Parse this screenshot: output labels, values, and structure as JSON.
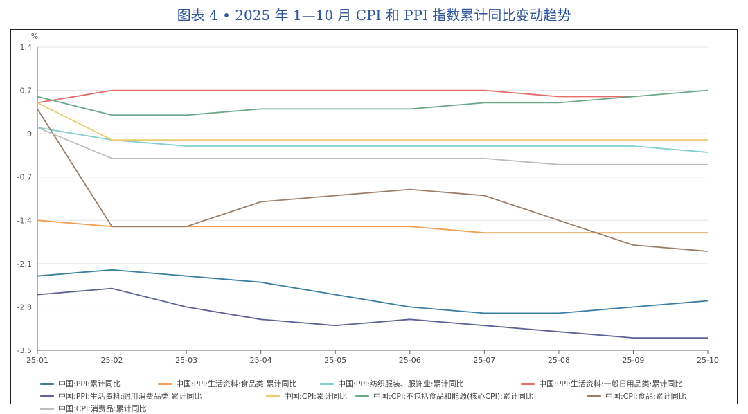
{
  "chart_data": {
    "type": "line",
    "title": "图表 4 • 2025 年 1—10 月 CPI 和 PPI 指数累计同比变动趋势",
    "ylabel": "%",
    "xlabel": "",
    "ylim": [
      -3.5,
      1.4
    ],
    "yticks": [
      1.4,
      0.7,
      0,
      -0.7,
      -1.4,
      -2.1,
      -2.8,
      -3.5
    ],
    "ytick_labels": [
      "1.4",
      "0.7",
      "0",
      "-0.7",
      "-1.4",
      "-2.1",
      "-2.8",
      "-3.5"
    ],
    "categories": [
      "25-01",
      "25-02",
      "25-03",
      "25-04",
      "25-05",
      "25-06",
      "25-07",
      "25-08",
      "25-09",
      "25-10"
    ],
    "legend_position": "bottom",
    "series": [
      {
        "name": "中国:PPI:累计同比",
        "color": "#3a7fa3",
        "values": [
          -2.3,
          -2.2,
          -2.3,
          -2.4,
          -2.6,
          -2.8,
          -2.9,
          -2.9,
          -2.8,
          -2.7
        ]
      },
      {
        "name": "中国:PPI:生活资料:食品类:累计同比",
        "color": "#f0a050",
        "values": [
          -1.4,
          -1.5,
          -1.5,
          -1.5,
          -1.5,
          -1.5,
          -1.6,
          -1.6,
          -1.6,
          -1.6
        ]
      },
      {
        "name": "中国:PPI:纺织服装、服饰业:累计同比",
        "color": "#7ecfcf",
        "values": [
          0.1,
          -0.1,
          -0.2,
          -0.2,
          -0.2,
          -0.2,
          -0.2,
          -0.2,
          -0.2,
          -0.3
        ]
      },
      {
        "name": "中国:PPI:生活资料:一般日用品类:累计同比",
        "color": "#e56b6b",
        "values": [
          0.5,
          0.7,
          0.7,
          0.7,
          0.7,
          0.7,
          0.7,
          0.6,
          0.6,
          null
        ]
      },
      {
        "name": "中国:PPI:生活资料:耐用消费品类:累计同比",
        "color": "#5d6195",
        "values": [
          -2.6,
          -2.5,
          -2.8,
          -3.0,
          -3.1,
          -3.0,
          -3.1,
          -3.2,
          -3.3,
          -3.3
        ]
      },
      {
        "name": "中国:CPI:累计同比",
        "color": "#ecc96a",
        "values": [
          0.5,
          -0.1,
          -0.1,
          -0.1,
          -0.1,
          -0.1,
          -0.1,
          -0.1,
          -0.1,
          -0.1
        ]
      },
      {
        "name": "中国:CPI:不包括食品和能源(核心CPI):累计同比",
        "color": "#6aa88a",
        "values": [
          0.6,
          0.3,
          0.3,
          0.4,
          0.4,
          0.4,
          0.5,
          0.5,
          0.6,
          0.7
        ]
      },
      {
        "name": "中国:CPI:食品:累计同比",
        "color": "#9b7d68",
        "values": [
          0.4,
          -1.5,
          -1.5,
          -1.1,
          -1.0,
          -0.9,
          -1.0,
          -1.4,
          -1.8,
          -1.9
        ]
      },
      {
        "name": "中国:CPI:消费品:累计同比",
        "color": "#bdbdbd",
        "values": [
          0.1,
          -0.4,
          -0.4,
          -0.4,
          -0.4,
          -0.4,
          -0.4,
          -0.5,
          -0.5,
          -0.5
        ]
      }
    ]
  }
}
